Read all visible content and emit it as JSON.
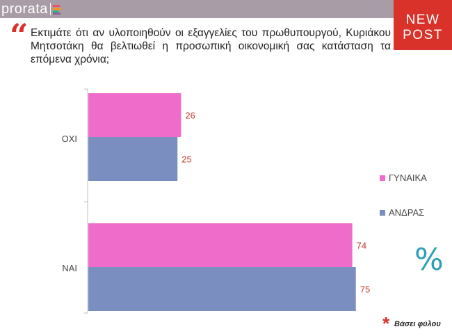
{
  "header": {
    "logo_text": "prorata",
    "logo_colors": [
      "#f04e6e",
      "#f7941d",
      "#2bb673",
      "#8e5ea2"
    ],
    "badge_line1": "NEW",
    "badge_line2": "POST",
    "badge_color": "#d9322a"
  },
  "question": {
    "quote_mark": "“",
    "text": "Εκτιμάτε ότι αν υλοποιηθούν οι εξαγγελίες του πρωθυπουργού, Κυριάκου Μητσοτάκη θα βελτιωθεί η προσωπική οικονομική σας κατάσταση τα επόμενα χρόνια;"
  },
  "chart_data": {
    "type": "bar",
    "orientation": "horizontal",
    "categories": [
      "ΟΧΙ",
      "ΝΑΙ"
    ],
    "series": [
      {
        "name": "ΓΥΝΑΙΚΑ",
        "values": [
          26,
          74
        ],
        "color": "#f06ccb"
      },
      {
        "name": "ΑΝΔΡΑΣ",
        "values": [
          25,
          75
        ],
        "color": "#7a8fc0"
      }
    ],
    "xlim": [
      0,
      100
    ],
    "legend": "right",
    "grid": false
  },
  "percent_symbol": "%",
  "footnote": {
    "marker": "*",
    "text": "Βάσει φύλου"
  }
}
